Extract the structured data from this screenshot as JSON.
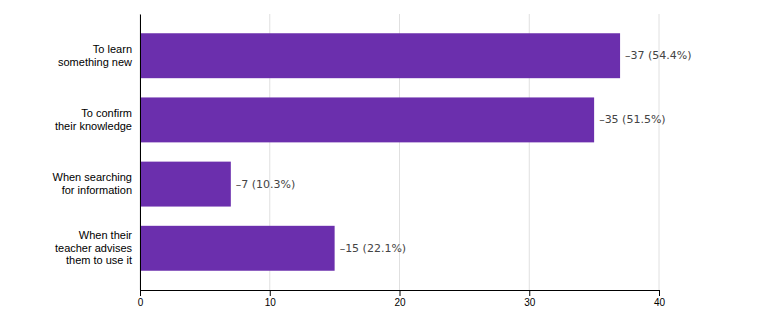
{
  "chart_data": {
    "type": "bar",
    "orientation": "horizontal",
    "categories": [
      "To learn\nsomething new",
      "To confirm\ntheir knowledge",
      "When searching\nfor information",
      "When their\nteacher advises\nthem to use it"
    ],
    "values": [
      37,
      35,
      7,
      15
    ],
    "value_labels": [
      "–37 (54.4%)",
      "–35 (51.5%)",
      "–7 (10.3%)",
      "–15 (22.1%)"
    ],
    "data_labels": true,
    "color": "#6b2fad",
    "xlim": [
      0,
      40
    ],
    "xticks": [
      0,
      10,
      20,
      30,
      40
    ],
    "grid": true
  }
}
